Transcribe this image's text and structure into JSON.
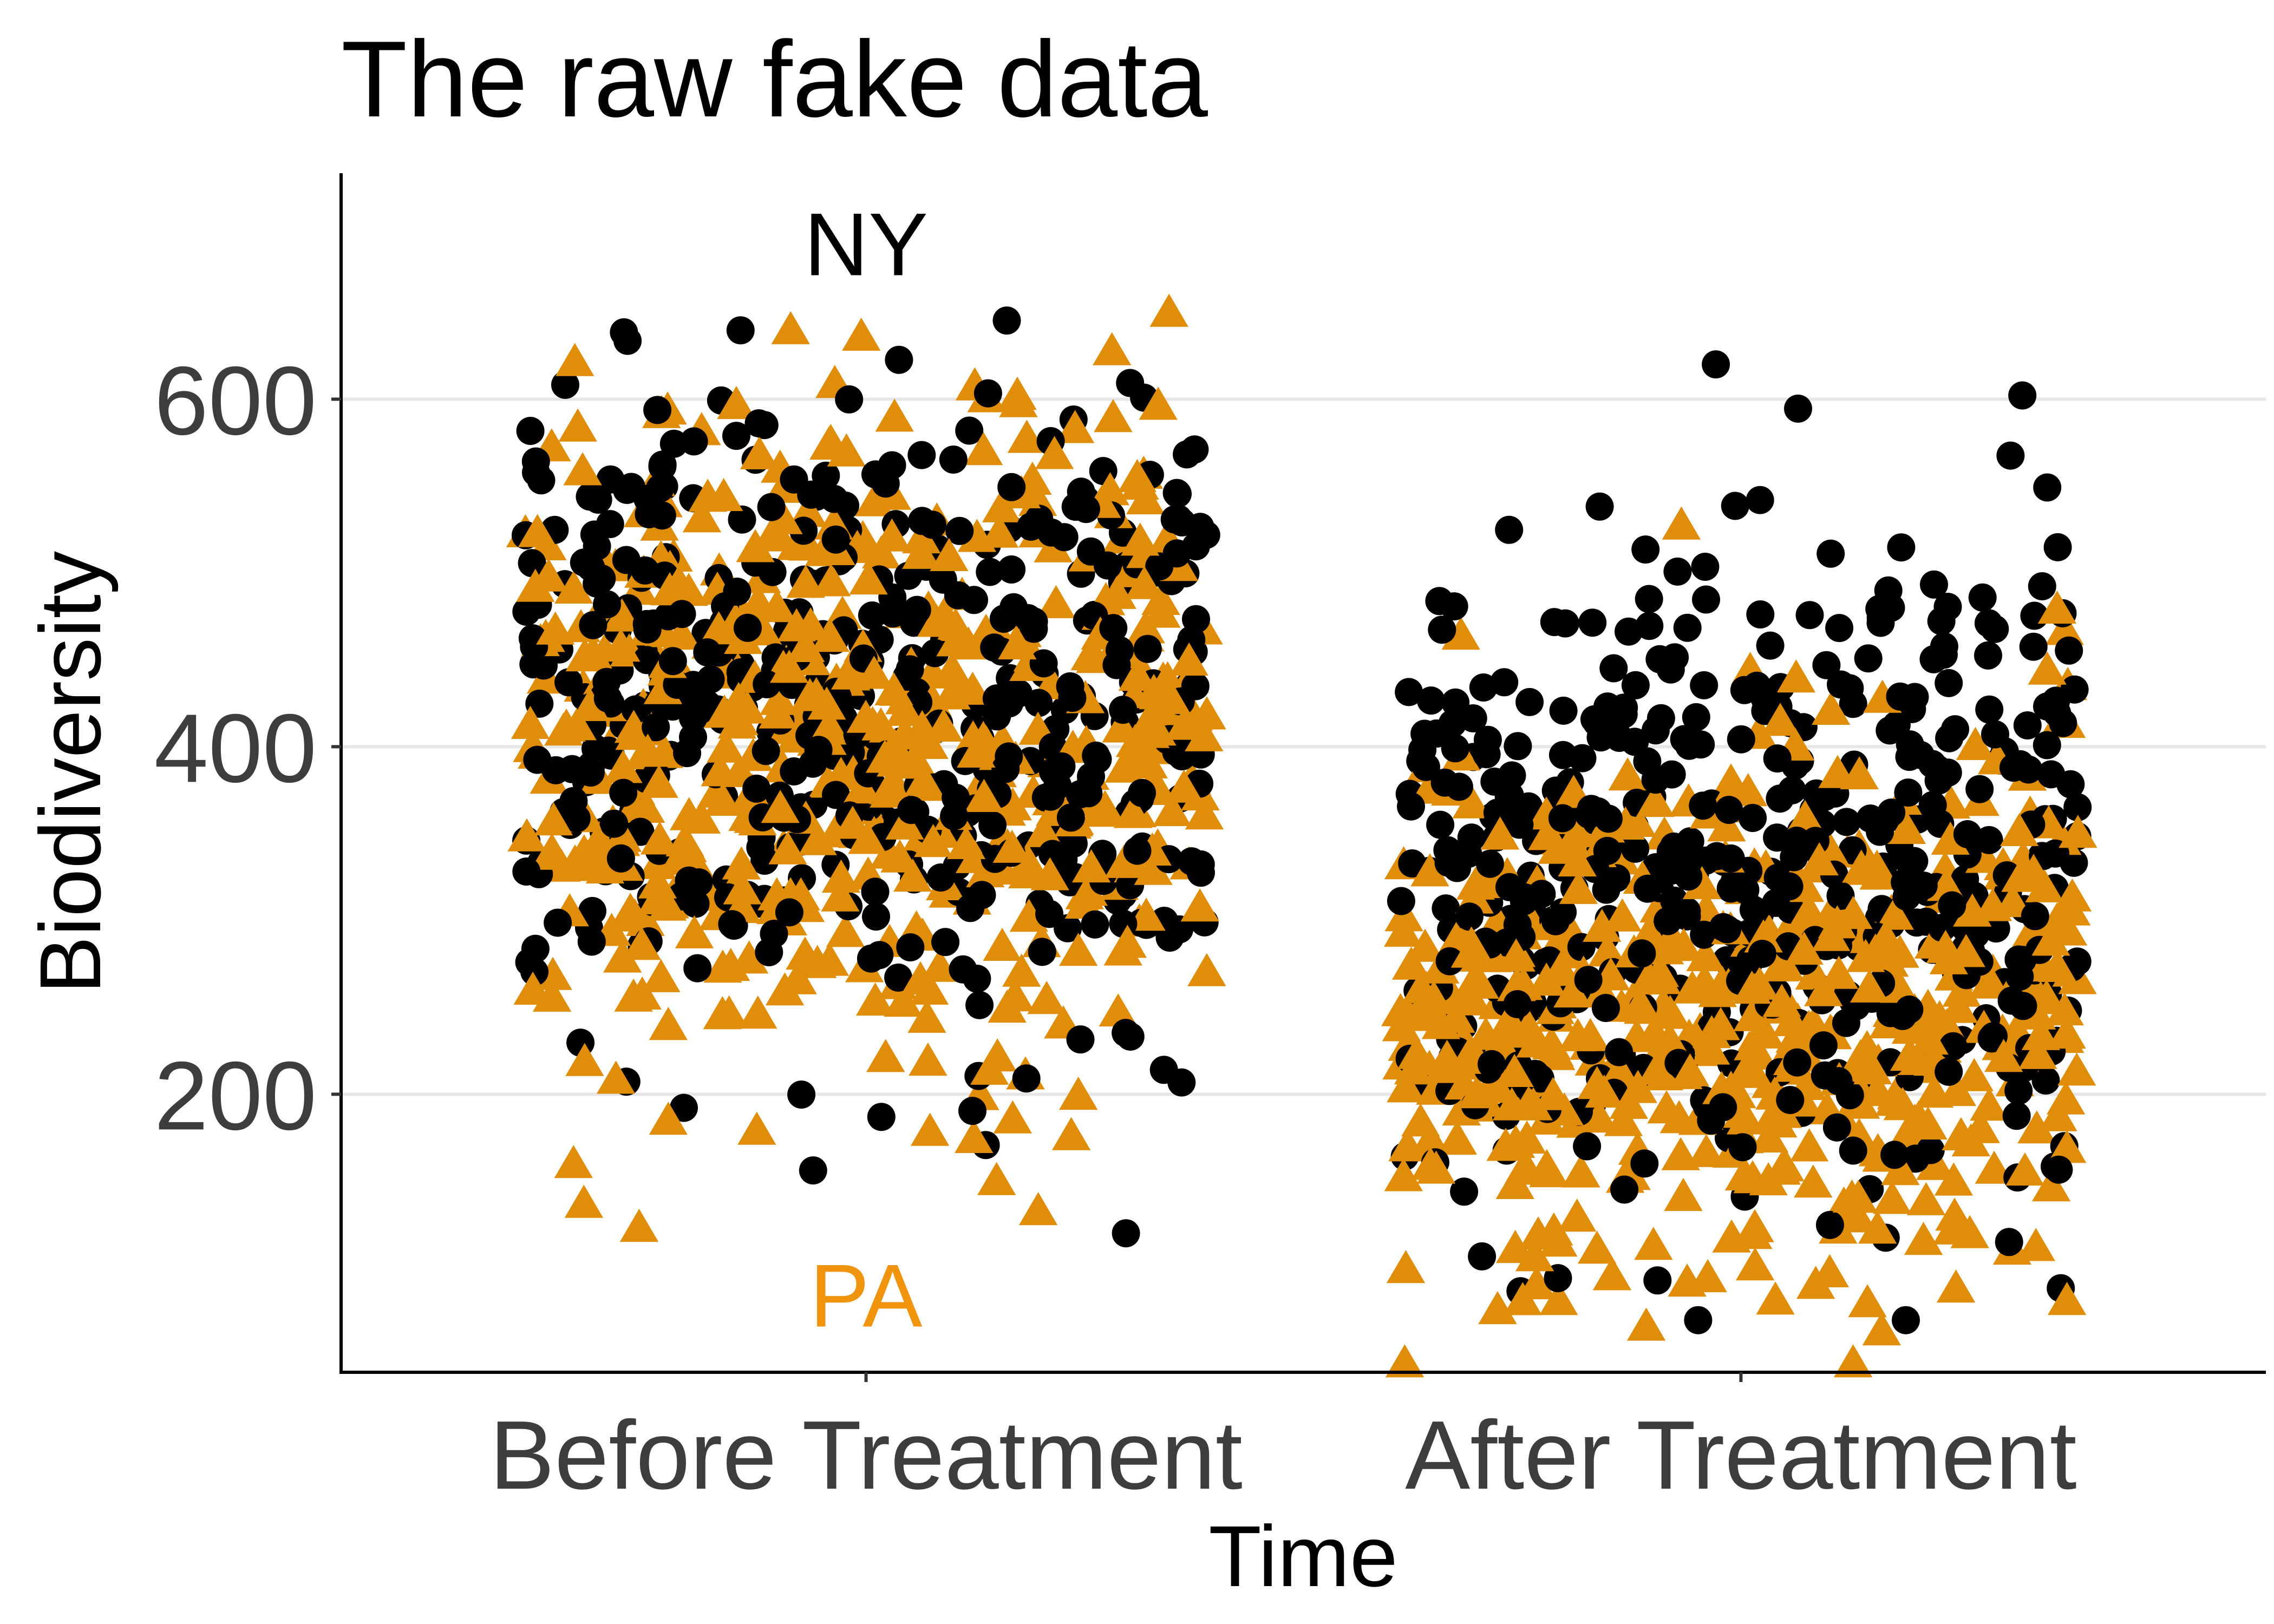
{
  "chart_data": {
    "type": "scatter",
    "title": "The raw fake data",
    "xlabel": "Time",
    "ylabel": "Biodiversity",
    "categories": [
      "Before Treatment",
      "After Treatment"
    ],
    "yticks": [
      200,
      400,
      600
    ],
    "ylim": [
      40,
      730
    ],
    "grid": "horizontal major",
    "jitter_width": 0.39,
    "series": [
      {
        "name": "NY",
        "label_color": "#000000",
        "marker": "circle",
        "color": "#000000",
        "groups": [
          {
            "category": "Before Treatment",
            "mean": 425,
            "sd": 90,
            "count": 520,
            "min": 120,
            "max": 690
          },
          {
            "category": "After Treatment",
            "mean": 330,
            "sd": 90,
            "count": 520,
            "min": 70,
            "max": 620
          }
        ]
      },
      {
        "name": "PA",
        "label_color": "#F0940E",
        "marker": "triangle",
        "color": "#E08D0A",
        "groups": [
          {
            "category": "Before Treatment",
            "mean": 395,
            "sd": 95,
            "count": 520,
            "min": 80,
            "max": 660
          },
          {
            "category": "After Treatment",
            "mean": 245,
            "sd": 85,
            "count": 520,
            "min": 45,
            "max": 545
          }
        ]
      }
    ],
    "annotations": [
      {
        "text": "NY",
        "category": "Before Treatment",
        "y": 690,
        "color": "#000000"
      },
      {
        "text": "PA",
        "category": "Before Treatment",
        "y": 85,
        "color": "#F0940E"
      }
    ]
  }
}
